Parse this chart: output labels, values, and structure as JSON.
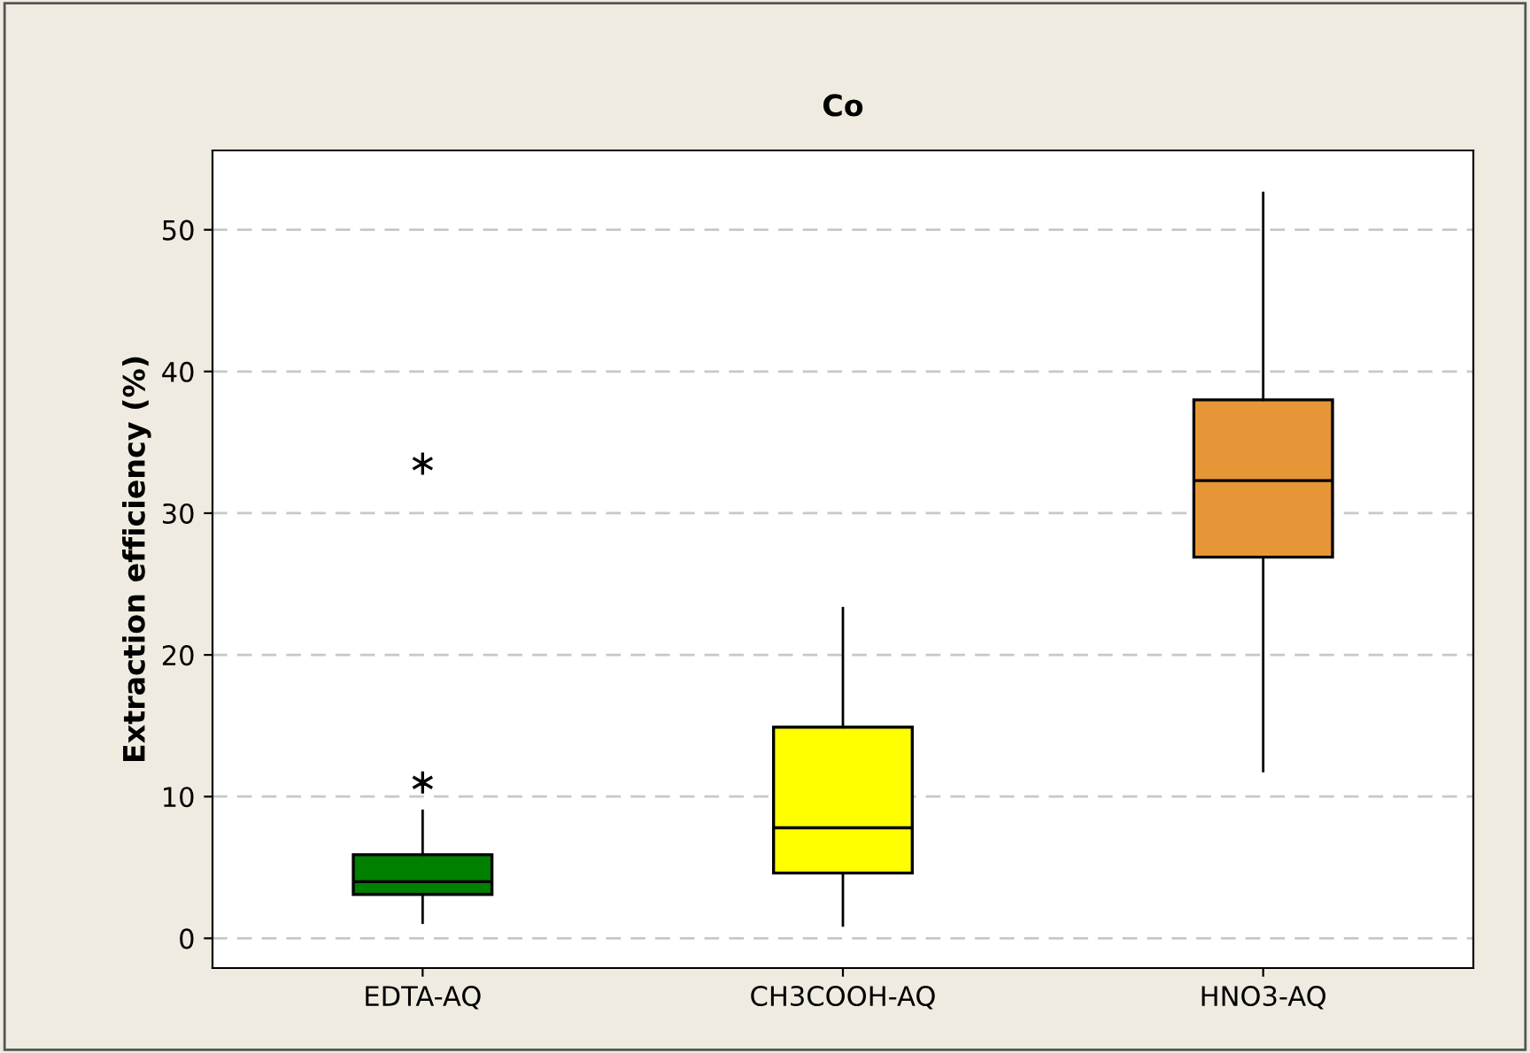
{
  "chart_data": {
    "type": "box",
    "title": "Co",
    "ylabel": "Extraction efficiency (%)",
    "categories": [
      "EDTA-AQ",
      "CH3COOH-AQ",
      "HNO3-AQ"
    ],
    "colors": [
      "#007f00",
      "#ffff00",
      "#e69636"
    ],
    "boxes": [
      {
        "low": 1.1,
        "q1": 3.1,
        "median": 4.0,
        "q3": 5.9,
        "high": 9.0,
        "outliers": [
          11.0,
          33.5
        ]
      },
      {
        "low": 0.9,
        "q1": 4.6,
        "median": 7.8,
        "q3": 14.9,
        "high": 23.3
      },
      {
        "low": 11.8,
        "q1": 26.9,
        "median": 32.3,
        "q3": 38.0,
        "high": 52.6
      }
    ],
    "ylim": [
      -2.1,
      55.6
    ],
    "yticks": [
      0,
      10,
      20,
      30,
      40,
      50
    ],
    "grid": "y",
    "marker": "star"
  }
}
